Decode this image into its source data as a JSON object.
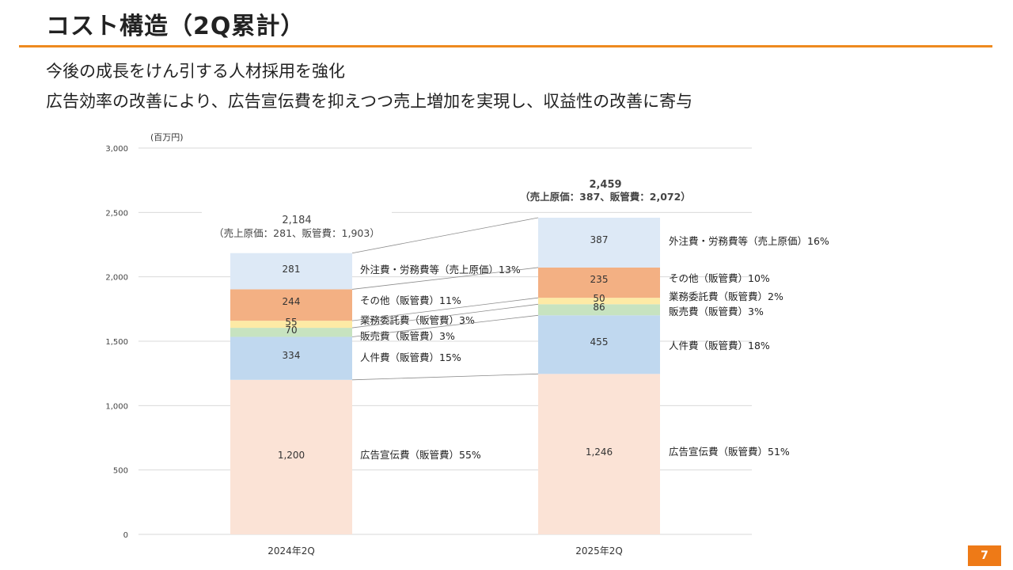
{
  "slide": {
    "title": "コスト構造（2Q累計）",
    "subtitle_lines": [
      "今後の成長をけん引する人材採用を強化",
      "広告効率の改善により、広告宣伝費を抑えつつ売上増加を実現し、収益性の改善に寄与"
    ],
    "page_number": "7",
    "accent_color": "#ee8a1f"
  },
  "chart_data": {
    "type": "bar",
    "stacked": true,
    "unit_label": "(百万円)",
    "ylim": [
      0,
      3000
    ],
    "yticks": [
      "0",
      "500",
      "1,000",
      "1,500",
      "2,000",
      "2,500",
      "3,000"
    ],
    "grid": true,
    "categories": [
      "2024年2Q",
      "2025年2Q"
    ],
    "series": [
      {
        "name": "広告宣伝費（販管費）",
        "values": [
          1200,
          1246
        ],
        "value_labels": [
          "1,200",
          "1,246"
        ],
        "color": "#fbe3d6",
        "segment_labels": [
          "広告宣伝費（販管費）55%",
          "広告宣伝費（販管費）51%"
        ]
      },
      {
        "name": "人件費（販管費）",
        "values": [
          334,
          455
        ],
        "value_labels": [
          "334",
          "455"
        ],
        "color": "#c0d8ef",
        "segment_labels": [
          "人件費（販管費）15%",
          "人件費（販管費）18%"
        ]
      },
      {
        "name": "販売費（販管費）",
        "values": [
          70,
          86
        ],
        "value_labels": [
          "70",
          "86"
        ],
        "color": "#c7e3c0",
        "segment_labels": [
          "販売費（販管費）3%",
          "販売費（販管費）3%"
        ]
      },
      {
        "name": "業務委託費（販管費）",
        "values": [
          55,
          50
        ],
        "value_labels": [
          "55",
          "50"
        ],
        "color": "#fdeaa5",
        "segment_labels": [
          "業務委託費（販管費）3%",
          "業務委託費（販管費）2%"
        ]
      },
      {
        "name": "その他（販管費）",
        "values": [
          244,
          235
        ],
        "value_labels": [
          "244",
          "235"
        ],
        "color": "#f3b083",
        "segment_labels": [
          "その他（販管費）11%",
          "その他（販管費）10%"
        ]
      },
      {
        "name": "外注費・労務費等（売上原価）",
        "values": [
          281,
          387
        ],
        "value_labels": [
          "281",
          "387"
        ],
        "color": "#dde9f6",
        "segment_labels": [
          "外注費・労務費等（売上原価）13%",
          "外注費・労務費等（売上原価）16%"
        ]
      }
    ],
    "totals": [
      {
        "total": "2,184",
        "breakdown": "（売上原価：281、販管費：1,903）"
      },
      {
        "total": "2,459",
        "breakdown": "（売上原価：387、販管費：2,072）"
      }
    ]
  }
}
